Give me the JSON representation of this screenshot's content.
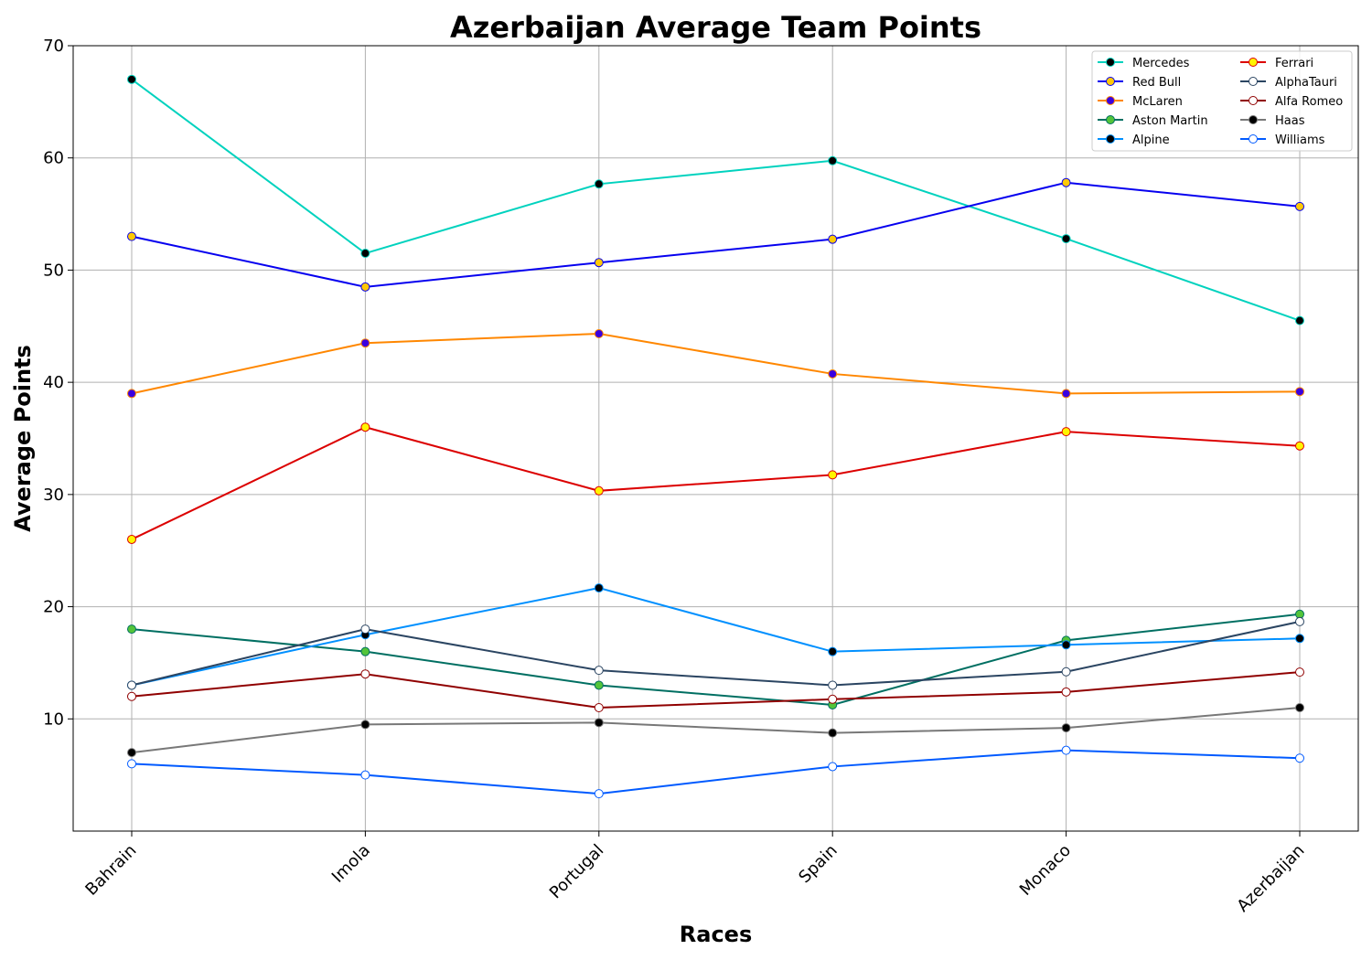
{
  "chart_data": {
    "type": "line",
    "title": "Azerbaijan Average Team Points",
    "xlabel": "Races",
    "ylabel": "Average Points",
    "categories": [
      "Bahrain",
      "Imola",
      "Portugal",
      "Spain",
      "Monaco",
      "Azerbaijan"
    ],
    "ylim": [
      0,
      70
    ],
    "yticks": [
      10,
      20,
      30,
      40,
      50,
      60,
      70
    ],
    "grid": true,
    "legend_position": "top-right",
    "legend_columns": 2,
    "series": [
      {
        "name": "Mercedes",
        "values": [
          67.0,
          51.5,
          57.67,
          59.75,
          52.8,
          45.5
        ],
        "color": "#00d2be",
        "marker_fill": "#000000",
        "marker_edge": "#00d2be"
      },
      {
        "name": "Red Bull",
        "values": [
          53.0,
          48.5,
          50.67,
          52.75,
          57.8,
          55.67
        ],
        "color": "#0600ef",
        "marker_fill": "#ffc906",
        "marker_edge": "#0600ef"
      },
      {
        "name": "McLaren",
        "values": [
          39.0,
          43.5,
          44.33,
          40.75,
          39.0,
          39.17
        ],
        "color": "#ff8700",
        "marker_fill": "#3a00e0",
        "marker_edge": "#ff8700"
      },
      {
        "name": "Aston Martin",
        "values": [
          18.0,
          16.0,
          13.0,
          11.25,
          17.0,
          19.33
        ],
        "color": "#006f62",
        "marker_fill": "#53c43a",
        "marker_edge": "#006f62"
      },
      {
        "name": "Alpine",
        "values": [
          13.0,
          17.5,
          21.67,
          16.0,
          16.6,
          17.17
        ],
        "color": "#0090ff",
        "marker_fill": "#000000",
        "marker_edge": "#0090ff"
      },
      {
        "name": "Ferrari",
        "values": [
          26.0,
          36.0,
          30.33,
          31.75,
          35.6,
          34.33
        ],
        "color": "#dc0000",
        "marker_fill": "#fff500",
        "marker_edge": "#dc0000"
      },
      {
        "name": "AlphaTauri",
        "values": [
          13.0,
          18.0,
          14.33,
          13.0,
          14.2,
          18.67
        ],
        "color": "#2b4562",
        "marker_fill": "#ffffff",
        "marker_edge": "#2b4562"
      },
      {
        "name": "Alfa Romeo",
        "values": [
          12.0,
          14.0,
          11.0,
          11.75,
          12.4,
          14.17
        ],
        "color": "#900000",
        "marker_fill": "#ffffff",
        "marker_edge": "#900000"
      },
      {
        "name": "Haas",
        "values": [
          7.0,
          9.5,
          9.67,
          8.75,
          9.2,
          11.0
        ],
        "color": "#787878",
        "marker_fill": "#000000",
        "marker_edge": "#787878"
      },
      {
        "name": "Williams",
        "values": [
          6.0,
          5.0,
          3.33,
          5.75,
          7.2,
          6.5
        ],
        "color": "#005aff",
        "marker_fill": "#ffffff",
        "marker_edge": "#005aff"
      }
    ]
  }
}
